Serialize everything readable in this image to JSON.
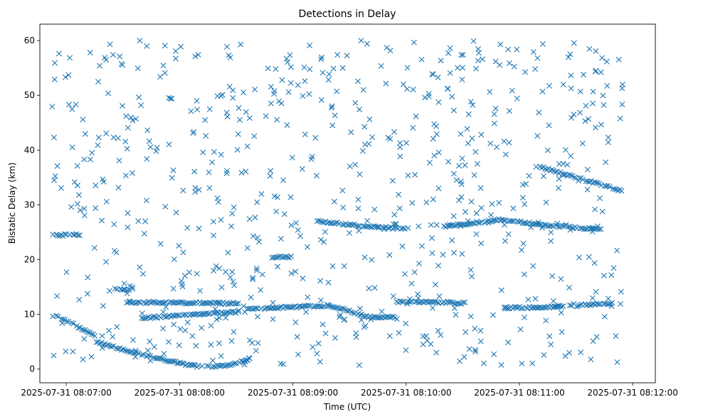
{
  "chart_data": {
    "type": "scatter",
    "title": "Detections in Delay",
    "xlabel": "Time (UTC)",
    "ylabel": "Bistatic Delay (km)",
    "x_unit": "seconds after 2025-07-31 08:07:00",
    "xlim": [
      -14,
      312
    ],
    "ylim": [
      -2.5,
      63
    ],
    "xticks": [
      0,
      60,
      120,
      180,
      240,
      300
    ],
    "xtick_labels": [
      "2025-07-31 08:07:00",
      "2025-07-31 08:08:00",
      "2025-07-31 08:09:00",
      "2025-07-31 08:10:00",
      "2025-07-31 08:11:00",
      "2025-07-31 08:12:00"
    ],
    "yticks": [
      0,
      10,
      20,
      30,
      40,
      50,
      60
    ],
    "ytick_labels": [
      "0",
      "10",
      "20",
      "30",
      "40",
      "50",
      "60"
    ],
    "marker": "x",
    "color": "#1f77b4",
    "time_range": [
      -8,
      295
    ],
    "delay_range": [
      0.5,
      60
    ],
    "tracks": [
      {
        "name": "descending-fast",
        "t": [
          -8,
          2,
          10,
          16
        ],
        "y": [
          10,
          8.5,
          7,
          6
        ]
      },
      {
        "name": "descending-curve",
        "t": [
          16,
          32,
          48,
          64,
          70,
          80,
          90,
          98
        ],
        "y": [
          5,
          3.4,
          2,
          0.8,
          0.5,
          0.5,
          1,
          2
        ]
      },
      {
        "name": "upper-dense-1",
        "t": [
          32,
          60,
          92
        ],
        "y": [
          12.2,
          12.1,
          12
        ]
      },
      {
        "name": "mid-dense-1",
        "t": [
          40,
          60,
          92
        ],
        "y": [
          9.3,
          9.8,
          10.5
        ]
      },
      {
        "name": "mid-dense-2",
        "t": [
          96,
          140,
          160,
          175
        ],
        "y": [
          11,
          11.6,
          9.5,
          9.5
        ]
      },
      {
        "name": "track-27a",
        "t": [
          132,
          148,
          160,
          172,
          182
        ],
        "y": [
          27,
          26.5,
          26,
          25.8,
          25.6
        ]
      },
      {
        "name": "track-12b",
        "t": [
          175,
          200,
          212
        ],
        "y": [
          12.3,
          12.2,
          12
        ]
      },
      {
        "name": "track-27b",
        "t": [
          200,
          230,
          256,
          284
        ],
        "y": [
          26,
          27.3,
          26.2,
          25.5
        ]
      },
      {
        "name": "track-11c",
        "t": [
          232,
          256,
          290
        ],
        "y": [
          11.2,
          11.3,
          12
        ]
      },
      {
        "name": "track-35",
        "t": [
          250,
          270,
          295
        ],
        "y": [
          37,
          35,
          32.5
        ]
      },
      {
        "name": "track-24",
        "t": [
          -8,
          8
        ],
        "y": [
          24.5,
          24.5
        ]
      },
      {
        "name": "track-20",
        "t": [
          108,
          120
        ],
        "y": [
          20.5,
          20.5
        ]
      },
      {
        "name": "track-14",
        "t": [
          26,
          36
        ],
        "y": [
          14.5,
          14.5
        ]
      }
    ],
    "noise_count": 720,
    "track_point_spacing_s": 0.9
  }
}
